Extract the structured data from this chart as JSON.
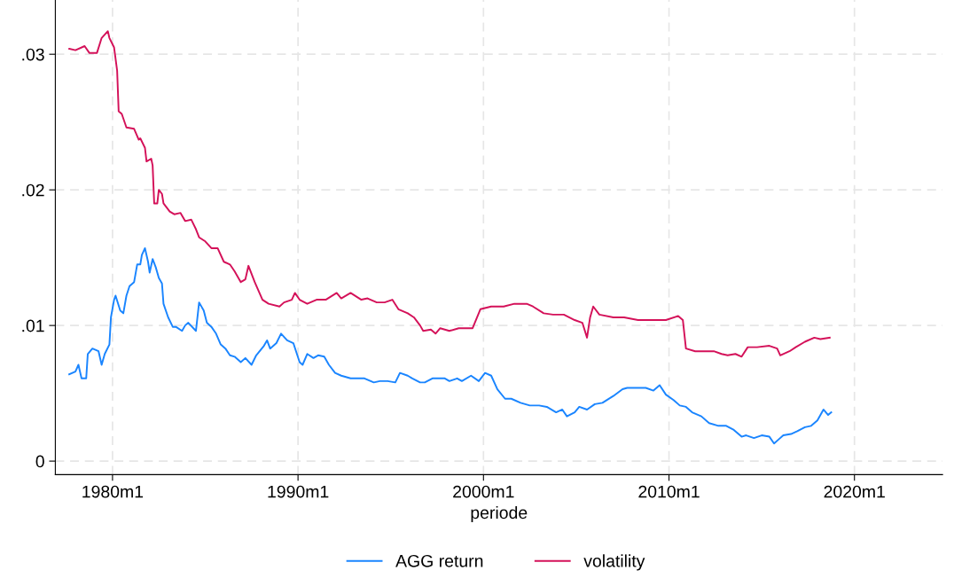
{
  "chart_data": {
    "type": "line",
    "xlabel": "periode",
    "xlim": [
      "1976-12",
      "2024-10"
    ],
    "ylim": [
      -0.001,
      0.034
    ],
    "xticks": [
      {
        "value": "1980-01",
        "label": "1980m1"
      },
      {
        "value": "1990-01",
        "label": "1990m1"
      },
      {
        "value": "2000-01",
        "label": "2000m1"
      },
      {
        "value": "2010-01",
        "label": "2010m1"
      },
      {
        "value": "2020-01",
        "label": "2020m1"
      }
    ],
    "yticks": [
      0,
      {
        "value": 0.01,
        "label": ".01"
      },
      {
        "value": 0.02,
        "label": ".02"
      },
      {
        "value": 0.03,
        "label": ".03"
      }
    ],
    "grid": true,
    "legend": "bottom",
    "line_style": "solid",
    "marker": "none",
    "series": [
      {
        "name": "AGG return",
        "color": "#1a85ff",
        "x": [
          "1977-09",
          "1978-01",
          "1978-03",
          "1978-05",
          "1978-08",
          "1978-09",
          "1978-12",
          "1979-04",
          "1979-06",
          "1979-08",
          "1979-11",
          "1979-12",
          "1980-02",
          "1980-03",
          "1980-06",
          "1980-08",
          "1980-10",
          "1980-12",
          "1981-03",
          "1981-05",
          "1981-07",
          "1981-08",
          "1981-10",
          "1981-12",
          "1982-01",
          "1982-03",
          "1982-05",
          "1982-07",
          "1982-09",
          "1982-10",
          "1983-01",
          "1983-04",
          "1983-06",
          "1983-10",
          "1983-12",
          "1984-02",
          "1984-07",
          "1984-09",
          "1984-12",
          "1985-02",
          "1985-05",
          "1985-08",
          "1985-11",
          "1986-02",
          "1986-05",
          "1986-08",
          "1986-12",
          "1987-03",
          "1987-07",
          "1987-10",
          "1988-03",
          "1988-05",
          "1988-07",
          "1988-11",
          "1989-02",
          "1989-06",
          "1989-10",
          "1990-02",
          "1990-04",
          "1990-07",
          "1990-11",
          "1991-02",
          "1991-06",
          "1991-09",
          "1992-01",
          "1992-05",
          "1992-11",
          "1993-03",
          "1993-08",
          "1994-02",
          "1994-06",
          "1994-11",
          "1995-04",
          "1995-07",
          "1995-12",
          "1996-03",
          "1996-08",
          "1996-11",
          "1997-04",
          "1997-07",
          "1997-12",
          "1998-03",
          "1998-08",
          "1998-11",
          "1999-05",
          "1999-10",
          "2000-02",
          "2000-06",
          "2000-10",
          "2001-03",
          "2001-07",
          "2002-01",
          "2002-07",
          "2003-01",
          "2003-06",
          "2003-12",
          "2004-04",
          "2004-07",
          "2004-12",
          "2005-03",
          "2005-08",
          "2006-01",
          "2006-06",
          "2007-01",
          "2007-07",
          "2007-10",
          "2008-04",
          "2008-10",
          "2009-03",
          "2009-07",
          "2009-11",
          "2010-04",
          "2010-08",
          "2010-12",
          "2011-04",
          "2011-10",
          "2012-03",
          "2012-09",
          "2013-02",
          "2013-07",
          "2013-12",
          "2014-03",
          "2014-08",
          "2015-01",
          "2015-06",
          "2015-09",
          "2015-12",
          "2016-03",
          "2016-08",
          "2016-12",
          "2017-05",
          "2017-09",
          "2018-01",
          "2018-05",
          "2018-08",
          "2018-10"
        ],
        "values": [
          0.0064,
          0.0066,
          0.0071,
          0.0061,
          0.0061,
          0.0079,
          0.0083,
          0.0081,
          0.0071,
          0.0079,
          0.0086,
          0.0106,
          0.0119,
          0.0122,
          0.0111,
          0.0109,
          0.0122,
          0.0129,
          0.0132,
          0.0145,
          0.0145,
          0.0152,
          0.0157,
          0.0147,
          0.0139,
          0.0149,
          0.0143,
          0.0135,
          0.0131,
          0.0116,
          0.0106,
          0.0099,
          0.0099,
          0.0096,
          0.01,
          0.0102,
          0.0096,
          0.0117,
          0.0111,
          0.0102,
          0.0099,
          0.0094,
          0.0086,
          0.0083,
          0.0078,
          0.0077,
          0.0073,
          0.0076,
          0.0071,
          0.0078,
          0.0085,
          0.0089,
          0.0083,
          0.0087,
          0.0094,
          0.0089,
          0.0087,
          0.0073,
          0.0071,
          0.0079,
          0.0076,
          0.0078,
          0.0077,
          0.0071,
          0.0065,
          0.0063,
          0.0061,
          0.0061,
          0.0061,
          0.0058,
          0.0059,
          0.0059,
          0.0058,
          0.0065,
          0.0063,
          0.0061,
          0.0058,
          0.0058,
          0.0061,
          0.0061,
          0.0061,
          0.0059,
          0.0061,
          0.0059,
          0.0063,
          0.0059,
          0.0065,
          0.0063,
          0.0053,
          0.0046,
          0.0046,
          0.0043,
          0.0041,
          0.0041,
          0.004,
          0.0036,
          0.0038,
          0.0033,
          0.0036,
          0.004,
          0.0038,
          0.0042,
          0.0043,
          0.0048,
          0.0053,
          0.0054,
          0.0054,
          0.0054,
          0.0052,
          0.0056,
          0.0049,
          0.0045,
          0.0041,
          0.004,
          0.0036,
          0.0033,
          0.0028,
          0.0026,
          0.0026,
          0.0023,
          0.0018,
          0.0019,
          0.0017,
          0.0019,
          0.0018,
          0.0013,
          0.0016,
          0.0019,
          0.002,
          0.0022,
          0.0025,
          0.0026,
          0.003,
          0.0038,
          0.0034,
          0.0036
        ]
      },
      {
        "name": "volatility",
        "color": "#d41159",
        "x": [
          "1977-09",
          "1978-01",
          "1978-07",
          "1978-10",
          "1979-03",
          "1979-06",
          "1979-10",
          "1979-11",
          "1980-02",
          "1980-04",
          "1980-05",
          "1980-07",
          "1980-10",
          "1981-03",
          "1981-06",
          "1981-07",
          "1981-10",
          "1981-11",
          "1982-02",
          "1982-03",
          "1982-04",
          "1982-06",
          "1982-07",
          "1982-09",
          "1982-10",
          "1983-02",
          "1983-05",
          "1983-09",
          "1983-12",
          "1984-04",
          "1984-07",
          "1984-09",
          "1985-01",
          "1985-05",
          "1985-09",
          "1986-01",
          "1986-05",
          "1986-08",
          "1986-12",
          "1987-03",
          "1987-05",
          "1987-09",
          "1988-02",
          "1988-06",
          "1989-01",
          "1989-04",
          "1989-09",
          "1989-11",
          "1990-02",
          "1990-07",
          "1991-01",
          "1991-07",
          "1992-02",
          "1992-05",
          "1992-11",
          "1993-06",
          "1993-10",
          "1994-04",
          "1994-09",
          "1995-02",
          "1995-06",
          "1995-12",
          "1996-04",
          "1996-08",
          "1996-10",
          "1997-03",
          "1997-06",
          "1997-09",
          "1998-03",
          "1998-09",
          "1999-06",
          "1999-11",
          "2000-06",
          "2001-02",
          "2001-09",
          "2002-05",
          "2002-09",
          "2003-04",
          "2003-10",
          "2004-05",
          "2004-12",
          "2005-05",
          "2005-08",
          "2005-10",
          "2005-12",
          "2006-04",
          "2007-01",
          "2007-08",
          "2008-05",
          "2009-03",
          "2009-11",
          "2010-07",
          "2010-10",
          "2010-12",
          "2011-06",
          "2012-02",
          "2012-06",
          "2012-11",
          "2013-03",
          "2013-08",
          "2013-12",
          "2014-04",
          "2014-10",
          "2015-06",
          "2015-11",
          "2016-01",
          "2016-07",
          "2016-11",
          "2017-05",
          "2017-11",
          "2018-03",
          "2018-09"
        ],
        "values": [
          0.0304,
          0.0303,
          0.0306,
          0.0301,
          0.0301,
          0.0312,
          0.0317,
          0.0312,
          0.0305,
          0.0288,
          0.0258,
          0.0256,
          0.0246,
          0.0245,
          0.0237,
          0.0238,
          0.0231,
          0.0221,
          0.0223,
          0.0218,
          0.019,
          0.019,
          0.02,
          0.0197,
          0.019,
          0.0184,
          0.0182,
          0.0183,
          0.0177,
          0.0178,
          0.0171,
          0.0165,
          0.0162,
          0.0157,
          0.0157,
          0.0147,
          0.0145,
          0.014,
          0.0132,
          0.0134,
          0.0144,
          0.0132,
          0.0119,
          0.0116,
          0.0114,
          0.0117,
          0.0119,
          0.0124,
          0.0119,
          0.0116,
          0.0119,
          0.0119,
          0.0124,
          0.012,
          0.0124,
          0.0119,
          0.012,
          0.0117,
          0.0117,
          0.0119,
          0.0112,
          0.0109,
          0.0106,
          0.01,
          0.0096,
          0.0097,
          0.0094,
          0.0098,
          0.0096,
          0.0098,
          0.0098,
          0.0112,
          0.0114,
          0.0114,
          0.0116,
          0.0116,
          0.0114,
          0.0109,
          0.0108,
          0.0108,
          0.0104,
          0.0102,
          0.0091,
          0.0106,
          0.0114,
          0.0108,
          0.0106,
          0.0106,
          0.0104,
          0.0104,
          0.0104,
          0.0107,
          0.0104,
          0.0083,
          0.0081,
          0.0081,
          0.0081,
          0.0079,
          0.0078,
          0.0079,
          0.0077,
          0.0084,
          0.0084,
          0.0085,
          0.0083,
          0.0078,
          0.0081,
          0.0084,
          0.0088,
          0.0091,
          0.009,
          0.0091
        ]
      }
    ]
  }
}
